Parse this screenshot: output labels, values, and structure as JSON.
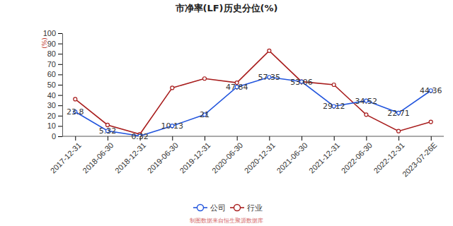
{
  "chart_data": {
    "type": "line",
    "title": "市净率(LF)历史分位(%)",
    "y_label": "(%)",
    "source": "制图数据来自恒生聚源数据库",
    "categories": [
      "2017-12-31",
      "2018-06-30",
      "2018-12-31",
      "2019-06-30",
      "2019-12-31",
      "2020-06-30",
      "2020-12-31",
      "2021-06-30",
      "2021-12-31",
      "2022-06-30",
      "2022-12-31",
      "2023-07-26E"
    ],
    "series": [
      {
        "name": "公司",
        "color": "#2255dd",
        "marker": "circle",
        "data_labels": true,
        "values": [
          23.8,
          5.32,
          0.32,
          10.13,
          21,
          47.84,
          57.35,
          53.06,
          29.12,
          34.52,
          22.71,
          44.36
        ]
      },
      {
        "name": "行业",
        "color": "#a81d1d",
        "marker": "circle",
        "data_labels": false,
        "values": [
          36,
          11,
          2,
          47,
          56,
          52,
          83,
          53,
          50,
          21,
          5,
          14
        ]
      }
    ],
    "ylim": [
      0,
      100
    ],
    "yticks": [
      0,
      10,
      20,
      30,
      40,
      50,
      60,
      70,
      80,
      90,
      100
    ],
    "grid": false,
    "legend": "bottom"
  }
}
